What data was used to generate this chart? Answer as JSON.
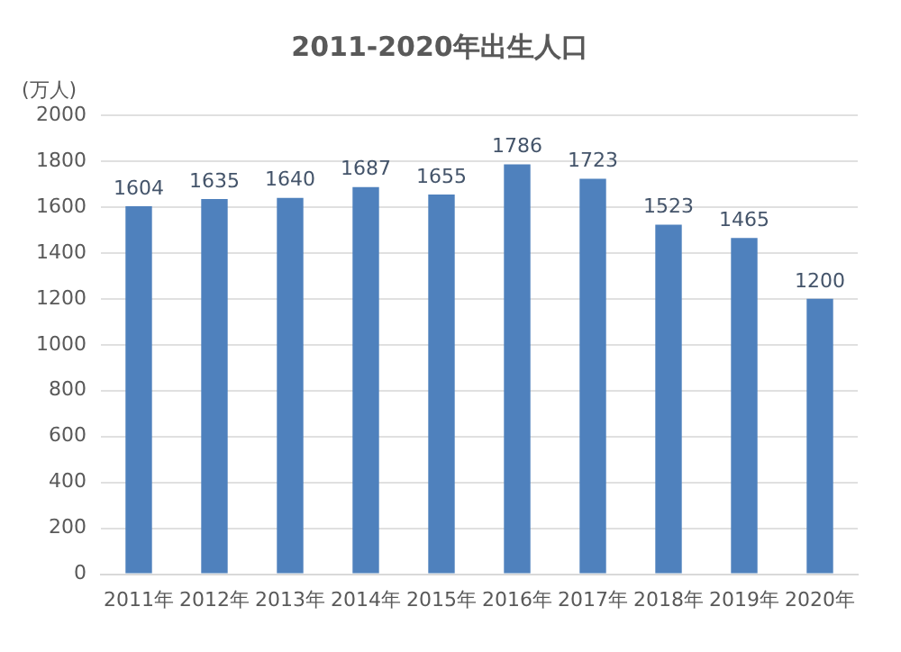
{
  "chart_data": {
    "type": "bar",
    "title": "2011-2020年出生人口",
    "ylabel": "(万人)",
    "categories": [
      "2011年",
      "2012年",
      "2013年",
      "2014年",
      "2015年",
      "2016年",
      "2017年",
      "2018年",
      "2019年",
      "2020年"
    ],
    "values": [
      1604,
      1635,
      1640,
      1687,
      1655,
      1786,
      1723,
      1523,
      1465,
      1200
    ],
    "color": "#4f81bd",
    "ylim": [
      0,
      2000
    ],
    "yticks": [
      0,
      200,
      400,
      600,
      800,
      1000,
      1200,
      1400,
      1600,
      1800,
      2000
    ],
    "grid": "y",
    "data_labels": true
  }
}
